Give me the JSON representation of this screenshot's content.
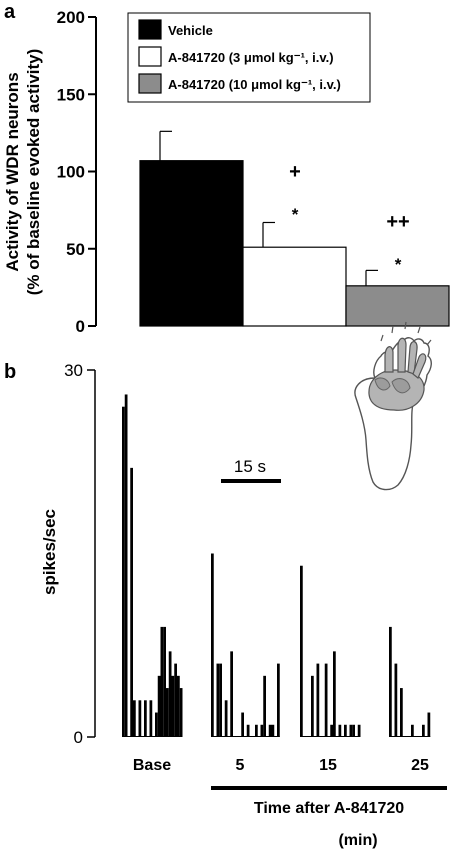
{
  "panel_a": {
    "label": "a",
    "legend": [
      {
        "label": "Vehicle",
        "color": "#000000"
      },
      {
        "label": "A-841720 (3 μmol kg⁻¹, i.v.)",
        "color": "#ffffff"
      },
      {
        "label": "A-841720 (10 μmol kg⁻¹, i.v.)",
        "color": "#8c8c8c"
      }
    ],
    "significance": [
      {
        "plus": "",
        "star": ""
      },
      {
        "plus": "+",
        "star": "*"
      },
      {
        "plus": "++",
        "star": "*"
      }
    ]
  },
  "panel_b": {
    "label": "b",
    "scale_bar_label": "15 s",
    "group_labels": [
      "Base",
      "5",
      "15",
      "25"
    ],
    "x_title_line1": "Time after A-841720",
    "x_title_line2": "(min)"
  },
  "chart_data": [
    {
      "type": "bar",
      "categories": [
        "Vehicle",
        "A-841720 (3 μmol kg⁻¹, i.v.)",
        "A-841720 (10 μmol kg⁻¹, i.v.)"
      ],
      "values": [
        107,
        51,
        26
      ],
      "errors": [
        19,
        16,
        10
      ],
      "colors": [
        "#000000",
        "#ffffff",
        "#8c8c8c"
      ],
      "ylabel_line1": "Activity of WDR neurons",
      "ylabel_line2": "(% of baseline evoked activity)",
      "ylim": [
        0,
        200
      ],
      "yticks": [
        0,
        50,
        100,
        150,
        200
      ],
      "legend_position": "top"
    },
    {
      "type": "bar",
      "ylabel": "spikes/sec",
      "ylim": [
        0,
        30
      ],
      "yticks": [
        0,
        30
      ],
      "groups": [
        {
          "label": "Base",
          "values": [
            27,
            28,
            0,
            22,
            3,
            0,
            3,
            0,
            3,
            0,
            3,
            0,
            2,
            5,
            9,
            9,
            4,
            7,
            5,
            6,
            5,
            4
          ]
        },
        {
          "label": "5",
          "values": [
            15,
            0,
            6,
            6,
            0,
            3,
            0,
            7,
            0,
            0,
            0,
            2,
            0,
            1,
            0,
            0,
            1,
            0,
            1,
            5,
            0,
            1,
            1,
            0,
            6
          ]
        },
        {
          "label": "15",
          "values": [
            14,
            0,
            0,
            0,
            5,
            0,
            6,
            0,
            0,
            6,
            0,
            1,
            7,
            0,
            1,
            0,
            1,
            0,
            1,
            1,
            0,
            1
          ]
        },
        {
          "label": "25",
          "values": [
            9,
            0,
            6,
            0,
            4,
            0,
            0,
            0,
            1,
            0,
            0,
            0,
            1,
            0,
            2
          ]
        }
      ]
    }
  ]
}
